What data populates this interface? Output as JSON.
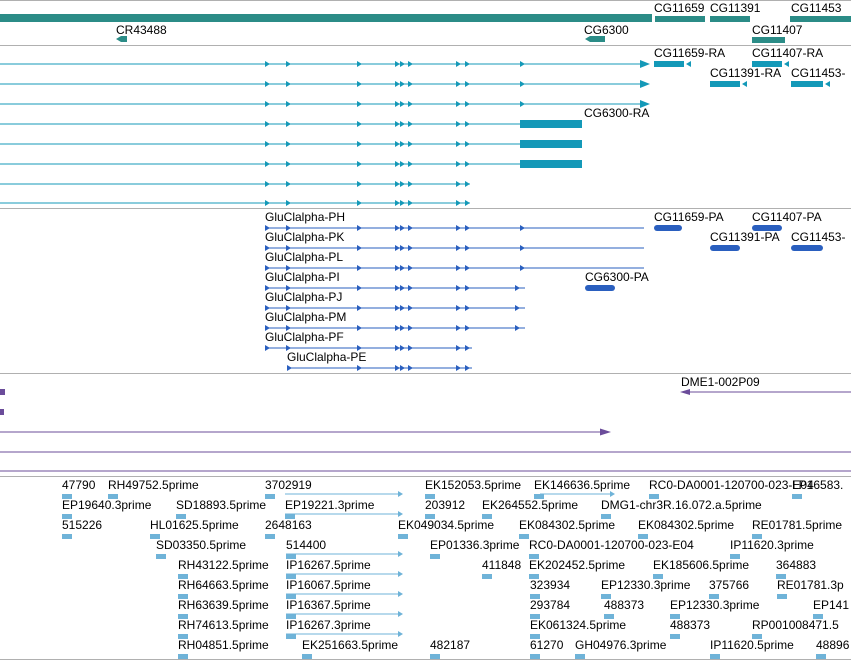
{
  "colors": {
    "gene_track": "#2b8c87",
    "transcript_track": "#1499b8",
    "protein_track": "#2a5fbf",
    "clone_track": "#6b4c9a",
    "est_track": "#6fb3d8",
    "divider": "#b0b0b0"
  },
  "gene_track": {
    "labels": [
      "CG11659",
      "CG11391",
      "CG11453",
      "CR43488",
      "CG6300",
      "CG11407"
    ]
  },
  "transcript_track": {
    "labels": [
      "CG11659-RA",
      "CG11407-RA",
      "CG11391-RA",
      "CG11453-",
      "CG6300-RA"
    ]
  },
  "protein_track": {
    "labels": [
      "GluClalpha-PH",
      "CG11659-PA",
      "CG11407-PA",
      "GluClalpha-PK",
      "CG11391-PA",
      "CG11453-",
      "GluClalpha-PL",
      "GluClalpha-PI",
      "CG6300-PA",
      "GluClalpha-PJ",
      "GluClalpha-PM",
      "GluClalpha-PF",
      "GluClalpha-PE"
    ]
  },
  "clone_track": {
    "labels": [
      "DME1-002P09"
    ]
  },
  "est_track": {
    "labels": [
      "47790",
      "RH49752.5prime",
      "3702919",
      "EK152053.5prime",
      "EK146636.5prime",
      "RC0-DA0001-120700-023-E04",
      "LP16583.",
      "EP19640.3prime",
      "SD18893.5prime",
      "EP19221.3prime",
      "203912",
      "EK264552.5prime",
      "DMG1-chr3R.16.072.a.5prime",
      "515226",
      "HL01625.5prime",
      "2648163",
      "EK049034.5prime",
      "EK084302.5prime",
      "EK084302.5prime",
      "RE01781.5prime",
      "SD03350.5prime",
      "514400",
      "EP01336.3prime",
      "RC0-DA0001-120700-023-E04",
      "IP11620.3prime",
      "RH43122.5prime",
      "IP16267.5prime",
      "411848",
      "EK202452.5prime",
      "EK185606.5prime",
      "364883",
      "RH64663.5prime",
      "IP16067.5prime",
      "323934",
      "EP12330.3prime",
      "375766",
      "RE01781.3p",
      "RH63639.5prime",
      "IP16367.5prime",
      "293784",
      "488373",
      "EP12330.3prime",
      "EP141",
      "RH74613.5prime",
      "IP16267.3prime",
      "EK061324.5prime",
      "488373",
      "RP001008471.5",
      "RH04851.5prime",
      "EK251663.5prime",
      "482187",
      "61270",
      "GH04976.3prime",
      "IP11620.5prime",
      "48896"
    ]
  }
}
